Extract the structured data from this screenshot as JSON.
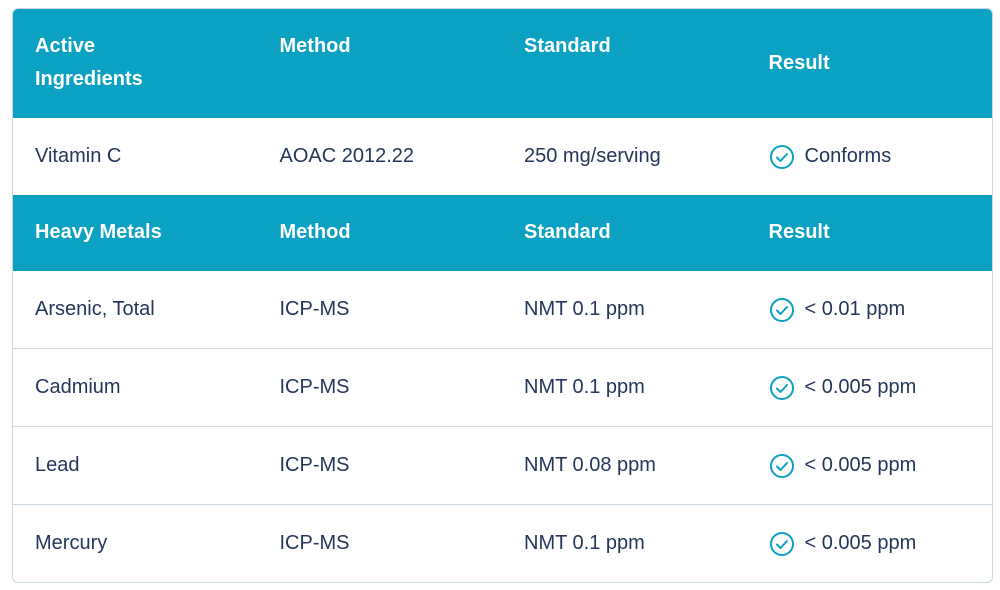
{
  "sections": [
    {
      "header": [
        "Active Ingredients",
        "Method",
        "Standard",
        "Result"
      ],
      "rows": [
        [
          "Vitamin C",
          "AOAC 2012.22",
          "250 mg/serving",
          "Conforms"
        ]
      ]
    },
    {
      "header": [
        "Heavy Metals",
        "Method",
        "Standard",
        "Result"
      ],
      "rows": [
        [
          "Arsenic, Total",
          "ICP-MS",
          "NMT 0.1 ppm",
          "< 0.01 ppm"
        ],
        [
          "Cadmium",
          "ICP-MS",
          "NMT 0.1 ppm",
          "< 0.005 ppm"
        ],
        [
          "Lead",
          "ICP-MS",
          "NMT 0.08 ppm",
          "< 0.005 ppm"
        ],
        [
          "Mercury",
          "ICP-MS",
          "NMT 0.1 ppm",
          "< 0.005 ppm"
        ]
      ]
    }
  ]
}
